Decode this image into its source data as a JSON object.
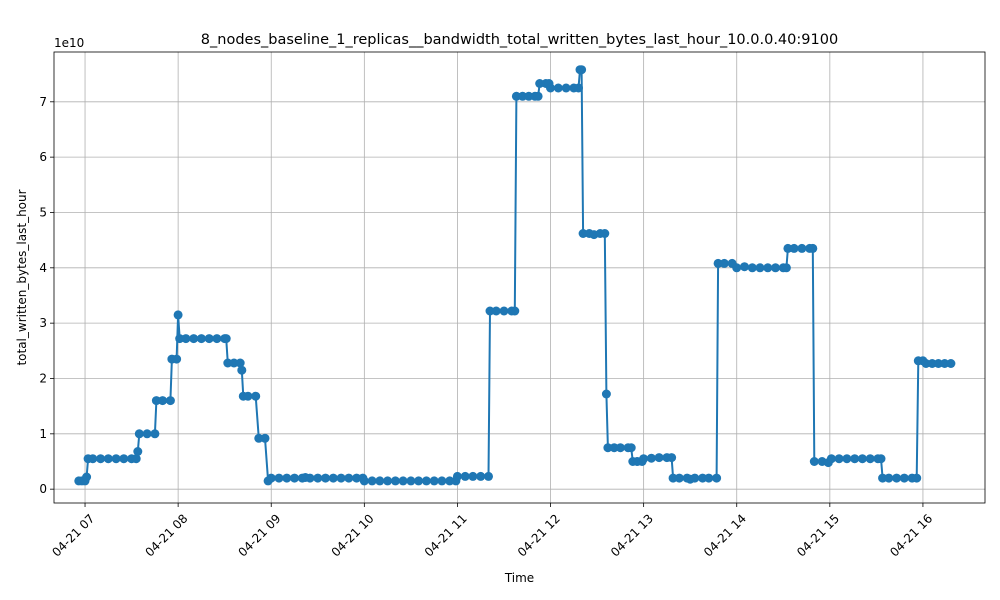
{
  "chart_data": {
    "type": "line",
    "title": "8_nodes_baseline_1_replicas__bandwidth_total_written_bytes_last_hour_10.0.0.40:9100",
    "xlabel": "Time",
    "ylabel": "total_written_bytes_last_hour",
    "y_offset_label": "1e10",
    "grid": true,
    "legend": "none",
    "colors": {
      "series": "#1f77b4"
    },
    "xlim": [
      "2024-04-21 06:40",
      "2024-04-21 16:40"
    ],
    "ylim": [
      -0.25,
      7.9
    ],
    "x_ticks": [
      "2024-04-21 07:00",
      "2024-04-21 08:00",
      "2024-04-21 09:00",
      "2024-04-21 10:00",
      "2024-04-21 11:00",
      "2024-04-21 12:00",
      "2024-04-21 13:00",
      "2024-04-21 14:00",
      "2024-04-21 15:00",
      "2024-04-21 16:00"
    ],
    "x_tick_labels": [
      "04-21 07",
      "04-21 08",
      "04-21 09",
      "04-21 10",
      "04-21 11",
      "04-21 12",
      "04-21 13",
      "04-21 14",
      "04-21 15",
      "04-21 16"
    ],
    "y_ticks": [
      0,
      1,
      2,
      3,
      4,
      5,
      6,
      7
    ],
    "y_tick_labels": [
      "0",
      "1",
      "2",
      "3",
      "4",
      "5",
      "6",
      "7"
    ],
    "series": [
      {
        "marker": "circle",
        "points": [
          [
            "2024-04-21 06:56",
            0.15
          ],
          [
            "2024-04-21 06:58",
            0.15
          ],
          [
            "2024-04-21 07:00",
            0.15
          ],
          [
            "2024-04-21 07:01",
            0.22
          ],
          [
            "2024-04-21 07:02",
            0.55
          ],
          [
            "2024-04-21 07:05",
            0.55
          ],
          [
            "2024-04-21 07:10",
            0.55
          ],
          [
            "2024-04-21 07:15",
            0.55
          ],
          [
            "2024-04-21 07:20",
            0.55
          ],
          [
            "2024-04-21 07:25",
            0.55
          ],
          [
            "2024-04-21 07:30",
            0.55
          ],
          [
            "2024-04-21 07:33",
            0.55
          ],
          [
            "2024-04-21 07:34",
            0.68
          ],
          [
            "2024-04-21 07:35",
            1.0
          ],
          [
            "2024-04-21 07:40",
            1.0
          ],
          [
            "2024-04-21 07:45",
            1.0
          ],
          [
            "2024-04-21 07:46",
            1.6
          ],
          [
            "2024-04-21 07:50",
            1.6
          ],
          [
            "2024-04-21 07:55",
            1.6
          ],
          [
            "2024-04-21 07:56",
            2.35
          ],
          [
            "2024-04-21 07:59",
            2.35
          ],
          [
            "2024-04-21 08:00",
            3.15
          ],
          [
            "2024-04-21 08:01",
            2.72
          ],
          [
            "2024-04-21 08:05",
            2.72
          ],
          [
            "2024-04-21 08:10",
            2.72
          ],
          [
            "2024-04-21 08:15",
            2.72
          ],
          [
            "2024-04-21 08:20",
            2.72
          ],
          [
            "2024-04-21 08:25",
            2.72
          ],
          [
            "2024-04-21 08:30",
            2.72
          ],
          [
            "2024-04-21 08:31",
            2.72
          ],
          [
            "2024-04-21 08:32",
            2.28
          ],
          [
            "2024-04-21 08:36",
            2.28
          ],
          [
            "2024-04-21 08:40",
            2.28
          ],
          [
            "2024-04-21 08:41",
            2.15
          ],
          [
            "2024-04-21 08:42",
            1.68
          ],
          [
            "2024-04-21 08:45",
            1.68
          ],
          [
            "2024-04-21 08:50",
            1.68
          ],
          [
            "2024-04-21 08:52",
            0.92
          ],
          [
            "2024-04-21 08:56",
            0.92
          ],
          [
            "2024-04-21 08:58",
            0.15
          ],
          [
            "2024-04-21 09:00",
            0.2
          ],
          [
            "2024-04-21 09:05",
            0.2
          ],
          [
            "2024-04-21 09:10",
            0.2
          ],
          [
            "2024-04-21 09:15",
            0.2
          ],
          [
            "2024-04-21 09:20",
            0.2
          ],
          [
            "2024-04-21 09:22",
            0.21
          ],
          [
            "2024-04-21 09:25",
            0.2
          ],
          [
            "2024-04-21 09:30",
            0.2
          ],
          [
            "2024-04-21 09:35",
            0.2
          ],
          [
            "2024-04-21 09:40",
            0.2
          ],
          [
            "2024-04-21 09:45",
            0.2
          ],
          [
            "2024-04-21 09:50",
            0.2
          ],
          [
            "2024-04-21 09:55",
            0.2
          ],
          [
            "2024-04-21 09:59",
            0.2
          ],
          [
            "2024-04-21 10:00",
            0.15
          ],
          [
            "2024-04-21 10:05",
            0.15
          ],
          [
            "2024-04-21 10:10",
            0.15
          ],
          [
            "2024-04-21 10:15",
            0.15
          ],
          [
            "2024-04-21 10:20",
            0.15
          ],
          [
            "2024-04-21 10:25",
            0.15
          ],
          [
            "2024-04-21 10:30",
            0.15
          ],
          [
            "2024-04-21 10:35",
            0.15
          ],
          [
            "2024-04-21 10:40",
            0.15
          ],
          [
            "2024-04-21 10:45",
            0.15
          ],
          [
            "2024-04-21 10:50",
            0.15
          ],
          [
            "2024-04-21 10:55",
            0.15
          ],
          [
            "2024-04-21 10:59",
            0.15
          ],
          [
            "2024-04-21 11:00",
            0.23
          ],
          [
            "2024-04-21 11:05",
            0.23
          ],
          [
            "2024-04-21 11:10",
            0.23
          ],
          [
            "2024-04-21 11:15",
            0.23
          ],
          [
            "2024-04-21 11:20",
            0.23
          ],
          [
            "2024-04-21 11:21",
            3.22
          ],
          [
            "2024-04-21 11:25",
            3.22
          ],
          [
            "2024-04-21 11:30",
            3.22
          ],
          [
            "2024-04-21 11:35",
            3.22
          ],
          [
            "2024-04-21 11:37",
            3.22
          ],
          [
            "2024-04-21 11:38",
            7.1
          ],
          [
            "2024-04-21 11:42",
            7.1
          ],
          [
            "2024-04-21 11:46",
            7.1
          ],
          [
            "2024-04-21 11:50",
            7.1
          ],
          [
            "2024-04-21 11:52",
            7.1
          ],
          [
            "2024-04-21 11:53",
            7.33
          ],
          [
            "2024-04-21 11:57",
            7.33
          ],
          [
            "2024-04-21 11:59",
            7.33
          ],
          [
            "2024-04-21 12:00",
            7.25
          ],
          [
            "2024-04-21 12:05",
            7.25
          ],
          [
            "2024-04-21 12:10",
            7.25
          ],
          [
            "2024-04-21 12:15",
            7.25
          ],
          [
            "2024-04-21 12:18",
            7.25
          ],
          [
            "2024-04-21 12:19",
            7.58
          ],
          [
            "2024-04-21 12:20",
            7.58
          ],
          [
            "2024-04-21 12:21",
            4.62
          ],
          [
            "2024-04-21 12:25",
            4.62
          ],
          [
            "2024-04-21 12:28",
            4.6
          ],
          [
            "2024-04-21 12:32",
            4.62
          ],
          [
            "2024-04-21 12:35",
            4.62
          ],
          [
            "2024-04-21 12:36",
            1.72
          ],
          [
            "2024-04-21 12:37",
            0.75
          ],
          [
            "2024-04-21 12:41",
            0.75
          ],
          [
            "2024-04-21 12:45",
            0.75
          ],
          [
            "2024-04-21 12:50",
            0.75
          ],
          [
            "2024-04-21 12:52",
            0.75
          ],
          [
            "2024-04-21 12:53",
            0.5
          ],
          [
            "2024-04-21 12:56",
            0.5
          ],
          [
            "2024-04-21 12:59",
            0.5
          ],
          [
            "2024-04-21 13:00",
            0.55
          ],
          [
            "2024-04-21 13:05",
            0.56
          ],
          [
            "2024-04-21 13:10",
            0.57
          ],
          [
            "2024-04-21 13:15",
            0.57
          ],
          [
            "2024-04-21 13:18",
            0.57
          ],
          [
            "2024-04-21 13:19",
            0.2
          ],
          [
            "2024-04-21 13:23",
            0.2
          ],
          [
            "2024-04-21 13:28",
            0.2
          ],
          [
            "2024-04-21 13:30",
            0.18
          ],
          [
            "2024-04-21 13:33",
            0.2
          ],
          [
            "2024-04-21 13:38",
            0.2
          ],
          [
            "2024-04-21 13:42",
            0.2
          ],
          [
            "2024-04-21 13:47",
            0.2
          ],
          [
            "2024-04-21 13:48",
            4.08
          ],
          [
            "2024-04-21 13:52",
            4.08
          ],
          [
            "2024-04-21 13:57",
            4.08
          ],
          [
            "2024-04-21 14:00",
            4.0
          ],
          [
            "2024-04-21 14:05",
            4.02
          ],
          [
            "2024-04-21 14:10",
            4.0
          ],
          [
            "2024-04-21 14:15",
            4.0
          ],
          [
            "2024-04-21 14:20",
            4.0
          ],
          [
            "2024-04-21 14:25",
            4.0
          ],
          [
            "2024-04-21 14:30",
            4.0
          ],
          [
            "2024-04-21 14:32",
            4.0
          ],
          [
            "2024-04-21 14:33",
            4.35
          ],
          [
            "2024-04-21 14:37",
            4.35
          ],
          [
            "2024-04-21 14:42",
            4.35
          ],
          [
            "2024-04-21 14:47",
            4.35
          ],
          [
            "2024-04-21 14:49",
            4.35
          ],
          [
            "2024-04-21 14:50",
            0.5
          ],
          [
            "2024-04-21 14:55",
            0.5
          ],
          [
            "2024-04-21 14:59",
            0.48
          ],
          [
            "2024-04-21 15:01",
            0.55
          ],
          [
            "2024-04-21 15:06",
            0.55
          ],
          [
            "2024-04-21 15:11",
            0.55
          ],
          [
            "2024-04-21 15:16",
            0.55
          ],
          [
            "2024-04-21 15:21",
            0.55
          ],
          [
            "2024-04-21 15:26",
            0.55
          ],
          [
            "2024-04-21 15:31",
            0.55
          ],
          [
            "2024-04-21 15:33",
            0.55
          ],
          [
            "2024-04-21 15:34",
            0.2
          ],
          [
            "2024-04-21 15:38",
            0.2
          ],
          [
            "2024-04-21 15:43",
            0.2
          ],
          [
            "2024-04-21 15:48",
            0.2
          ],
          [
            "2024-04-21 15:53",
            0.2
          ],
          [
            "2024-04-21 15:56",
            0.2
          ],
          [
            "2024-04-21 15:57",
            2.32
          ],
          [
            "2024-04-21 16:00",
            2.32
          ],
          [
            "2024-04-21 16:02",
            2.27
          ],
          [
            "2024-04-21 16:06",
            2.27
          ],
          [
            "2024-04-21 16:10",
            2.27
          ],
          [
            "2024-04-21 16:14",
            2.27
          ],
          [
            "2024-04-21 16:18",
            2.27
          ]
        ]
      }
    ]
  }
}
